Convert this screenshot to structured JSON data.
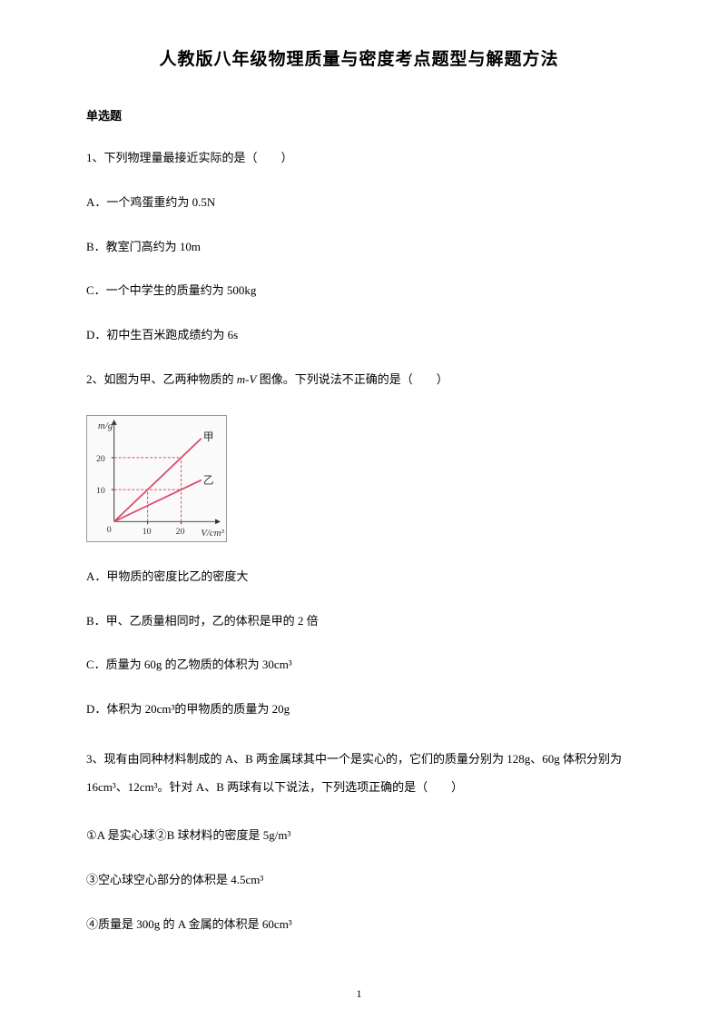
{
  "title": "人教版八年级物理质量与密度考点题型与解题方法",
  "section_header": "单选题",
  "q1": {
    "text": "1、下列物理量最接近实际的是（　　）",
    "options": {
      "a": "A．一个鸡蛋重约为 0.5N",
      "b": "B．教室门高约为 10m",
      "c": "C．一个中学生的质量约为 500kg",
      "d": "D．初中生百米跑成绩约为 6s"
    }
  },
  "q2": {
    "text_pre": "2、如图为甲、乙两种物质的 ",
    "text_var": "m-V",
    "text_post": " 图像。下列说法不正确的是（　　）",
    "options": {
      "a": "A．甲物质的密度比乙的密度大",
      "b": "B．甲、乙质量相同时，乙的体积是甲的 2 倍",
      "c": "C．质量为 60g 的乙物质的体积为 30cm³",
      "d": "D．体积为 20cm³的甲物质的质量为 20g"
    }
  },
  "q3": {
    "text": "3、现有由同种材料制成的 A、B 两金属球其中一个是实心的，它们的质量分别为 128g、60g 体积分别为16cm³、12cm³。针对 A、B 两球有以下说法，下列选项正确的是（　　）",
    "items": {
      "i1": "①A 是实心球②B 球材料的密度是 5g/m³",
      "i2": "③空心球空心部分的体积是 4.5cm³",
      "i3": "④质量是 300g 的 A 金属的体积是 60cm³"
    }
  },
  "chart": {
    "y_label": "m/g",
    "x_label": "V/cm³",
    "x_ticks": [
      "0",
      "10",
      "20"
    ],
    "y_ticks": [
      "10",
      "20"
    ],
    "series_jia": "甲",
    "series_yi": "乙",
    "line_color": "#d94a6e",
    "axis_color": "#333333",
    "grid_dash_color": "#d94a6e",
    "background": "#fafafa",
    "jia_points": [
      [
        0,
        0
      ],
      [
        20,
        20
      ]
    ],
    "yi_points": [
      [
        0,
        0
      ],
      [
        20,
        10
      ]
    ],
    "xlim": [
      0,
      28
    ],
    "ylim": [
      0,
      28
    ],
    "x_tick_vals": [
      10,
      20
    ],
    "y_tick_vals": [
      10,
      20
    ]
  },
  "page_number": "1"
}
